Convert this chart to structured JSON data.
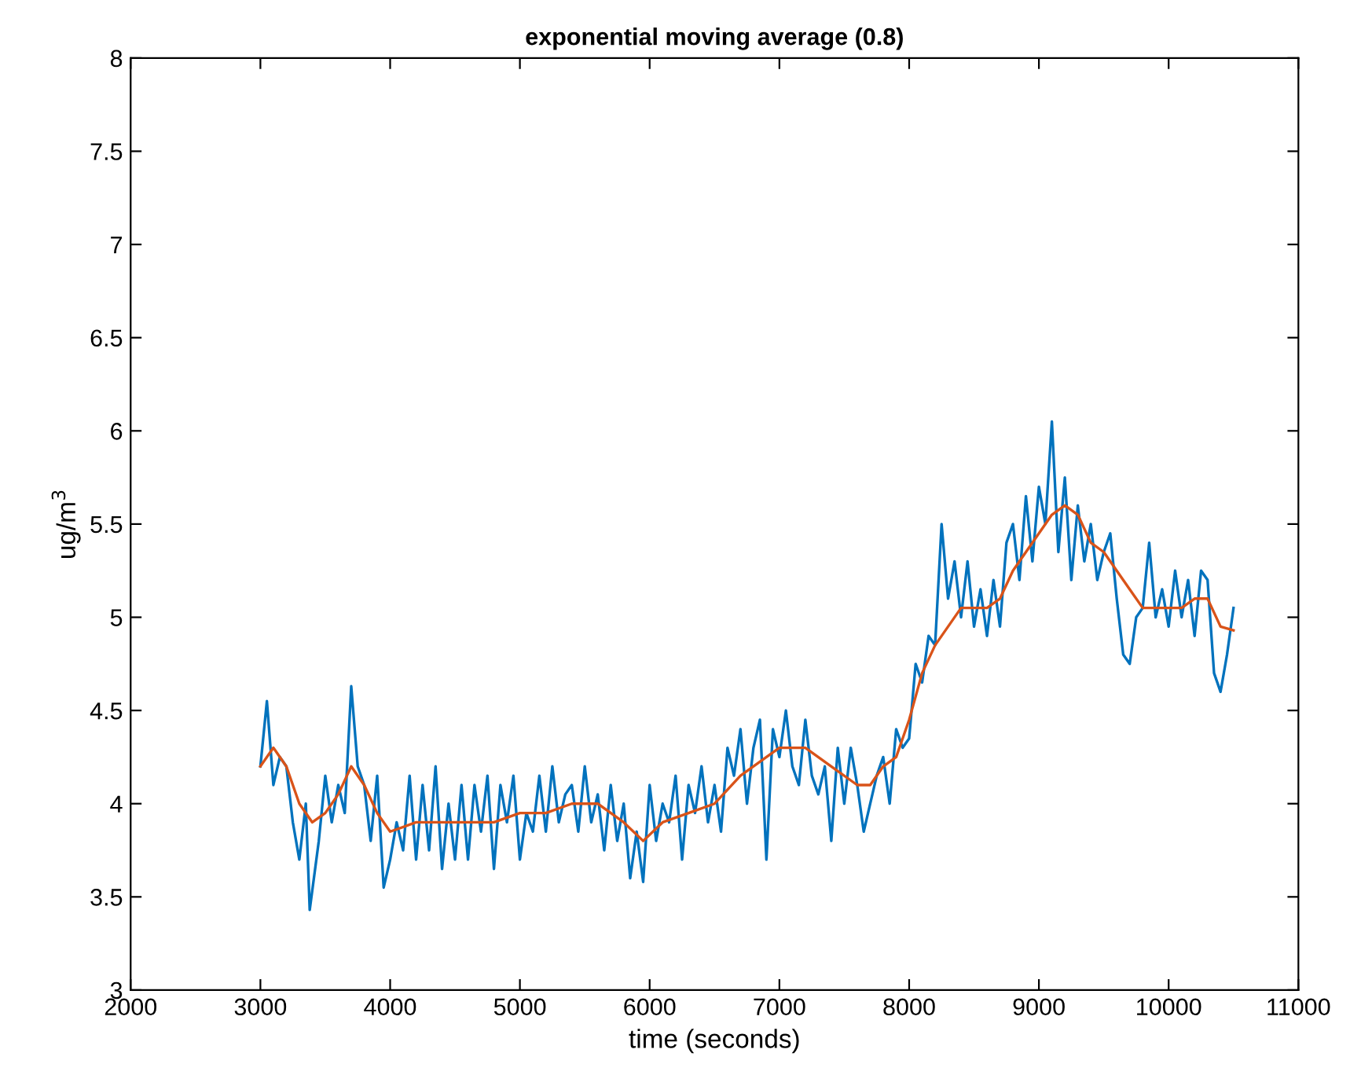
{
  "chart_data": {
    "type": "line",
    "title": "exponential moving average (0.8)",
    "xlabel": "time (seconds)",
    "ylabel": "ug/m$^{3}$",
    "xlim": [
      2000,
      11000
    ],
    "xticks": [
      2000,
      3000,
      4000,
      5000,
      6000,
      7000,
      8000,
      9000,
      10000,
      11000
    ],
    "ylim": [
      3,
      8
    ],
    "yticks": [
      3,
      3.5,
      4,
      4.5,
      5,
      5.5,
      6,
      6.5,
      7,
      7.5,
      8
    ],
    "grid": false,
    "series": [
      {
        "color": "#0072bd",
        "x": [
          3000,
          3050,
          3100,
          3150,
          3200,
          3250,
          3300,
          3350,
          3380,
          3450,
          3500,
          3550,
          3600,
          3650,
          3700,
          3750,
          3800,
          3850,
          3900,
          3950,
          4000,
          4050,
          4100,
          4150,
          4200,
          4250,
          4300,
          4350,
          4400,
          4450,
          4500,
          4550,
          4600,
          4650,
          4700,
          4750,
          4800,
          4850,
          4900,
          4950,
          5000,
          5050,
          5100,
          5150,
          5200,
          5250,
          5300,
          5350,
          5400,
          5450,
          5500,
          5550,
          5600,
          5650,
          5700,
          5750,
          5800,
          5850,
          5900,
          5950,
          6000,
          6050,
          6100,
          6150,
          6200,
          6250,
          6300,
          6350,
          6400,
          6450,
          6500,
          6550,
          6600,
          6650,
          6700,
          6750,
          6800,
          6850,
          6900,
          6950,
          7000,
          7050,
          7100,
          7150,
          7200,
          7250,
          7300,
          7350,
          7400,
          7450,
          7500,
          7550,
          7600,
          7650,
          7700,
          7750,
          7800,
          7850,
          7900,
          7950,
          8000,
          8050,
          8100,
          8150,
          8200,
          8250,
          8300,
          8350,
          8400,
          8450,
          8500,
          8550,
          8600,
          8650,
          8700,
          8750,
          8800,
          8850,
          8900,
          8950,
          9000,
          9050,
          9100,
          9150,
          9200,
          9250,
          9300,
          9350,
          9400,
          9450,
          9500,
          9550,
          9600,
          9650,
          9700,
          9750,
          9800,
          9850,
          9900,
          9950,
          10000,
          10050,
          10100,
          10150,
          10200,
          10250,
          10300,
          10350,
          10400,
          10450,
          10500
        ],
        "values": [
          4.2,
          4.55,
          4.1,
          4.25,
          4.2,
          3.9,
          3.7,
          4.0,
          3.43,
          3.8,
          4.15,
          3.9,
          4.1,
          3.95,
          4.63,
          4.2,
          4.1,
          3.8,
          4.15,
          3.55,
          3.7,
          3.9,
          3.75,
          4.15,
          3.7,
          4.1,
          3.75,
          4.2,
          3.65,
          4.0,
          3.7,
          4.1,
          3.7,
          4.1,
          3.85,
          4.15,
          3.65,
          4.1,
          3.9,
          4.15,
          3.7,
          3.95,
          3.85,
          4.15,
          3.85,
          4.2,
          3.9,
          4.05,
          4.1,
          3.85,
          4.2,
          3.9,
          4.05,
          3.75,
          4.1,
          3.8,
          4.0,
          3.6,
          3.85,
          3.58,
          4.1,
          3.8,
          4.0,
          3.9,
          4.15,
          3.7,
          4.1,
          3.95,
          4.2,
          3.9,
          4.1,
          3.85,
          4.3,
          4.15,
          4.4,
          4.0,
          4.3,
          4.45,
          3.7,
          4.4,
          4.25,
          4.5,
          4.2,
          4.1,
          4.45,
          4.15,
          4.05,
          4.2,
          3.8,
          4.3,
          4.0,
          4.3,
          4.1,
          3.85,
          4.0,
          4.15,
          4.25,
          4.0,
          4.4,
          4.3,
          4.35,
          4.75,
          4.65,
          4.9,
          4.85,
          5.5,
          5.1,
          5.3,
          5.0,
          5.3,
          4.95,
          5.15,
          4.9,
          5.2,
          4.95,
          5.4,
          5.5,
          5.2,
          5.65,
          5.3,
          5.7,
          5.5,
          6.05,
          5.35,
          5.75,
          5.2,
          5.6,
          5.3,
          5.5,
          5.2,
          5.35,
          5.45,
          5.1,
          4.8,
          4.75,
          5.0,
          5.05,
          5.4,
          5.0,
          5.15,
          4.95,
          5.25,
          5.0,
          5.2,
          4.9,
          5.25,
          5.2,
          4.7,
          4.6,
          4.8,
          5.05
        ]
      },
      {
        "color": "#d95319",
        "x": [
          3000,
          3100,
          3200,
          3300,
          3400,
          3500,
          3600,
          3700,
          3800,
          3900,
          4000,
          4200,
          4400,
          4600,
          4800,
          5000,
          5200,
          5400,
          5600,
          5800,
          5950,
          6100,
          6300,
          6500,
          6700,
          6900,
          7000,
          7200,
          7400,
          7600,
          7700,
          7800,
          7900,
          8000,
          8100,
          8200,
          8300,
          8400,
          8600,
          8700,
          8800,
          8900,
          9000,
          9100,
          9200,
          9300,
          9400,
          9500,
          9600,
          9700,
          9800,
          9900,
          10000,
          10100,
          10200,
          10300,
          10400,
          10500
        ],
        "values": [
          4.2,
          4.3,
          4.2,
          4.0,
          3.9,
          3.95,
          4.05,
          4.2,
          4.1,
          3.95,
          3.85,
          3.9,
          3.9,
          3.9,
          3.9,
          3.95,
          3.95,
          4.0,
          4.0,
          3.9,
          3.8,
          3.9,
          3.95,
          4.0,
          4.15,
          4.25,
          4.3,
          4.3,
          4.2,
          4.1,
          4.1,
          4.2,
          4.25,
          4.45,
          4.7,
          4.85,
          4.95,
          5.05,
          5.05,
          5.1,
          5.25,
          5.35,
          5.45,
          5.55,
          5.6,
          5.55,
          5.4,
          5.35,
          5.25,
          5.15,
          5.05,
          5.05,
          5.05,
          5.05,
          5.1,
          5.1,
          4.95,
          4.93
        ]
      }
    ]
  }
}
